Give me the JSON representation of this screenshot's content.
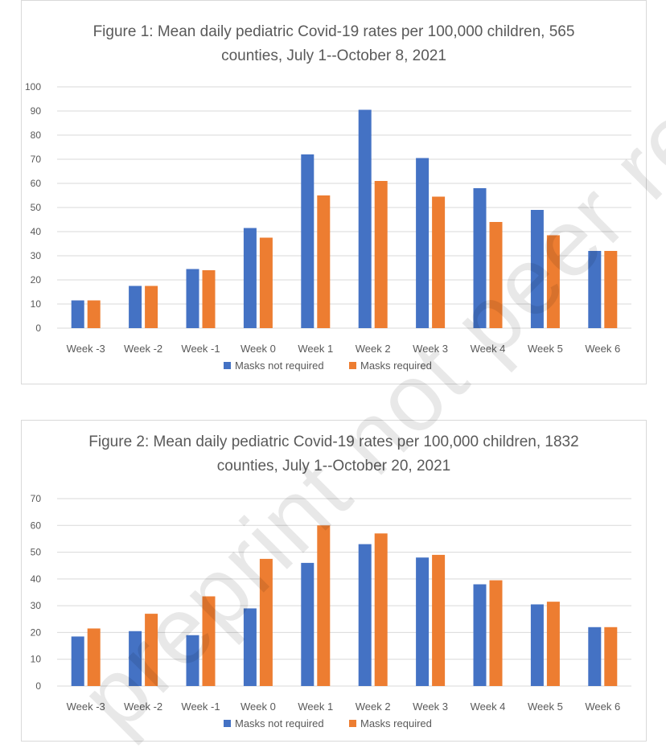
{
  "watermark": "preprint not peer reviewed",
  "colors": {
    "masks_not_required": "#4472C4",
    "masks_required": "#ED7D31",
    "grid": "#d9d9d9",
    "text": "#595959"
  },
  "chart_data": [
    {
      "type": "bar",
      "title": "Figure 1: Mean daily pediatric Covid-19 rates per 100,000 children, 565",
      "title_line2": "counties, July 1--October 8, 2021",
      "categories": [
        "Week -3",
        "Week -2",
        "Week -1",
        "Week 0",
        "Week 1",
        "Week 2",
        "Week 3",
        "Week 4",
        "Week 5",
        "Week 6"
      ],
      "series": [
        {
          "name": "Masks not required",
          "color": "#4472C4",
          "values": [
            11.5,
            17.5,
            24.5,
            41.5,
            72,
            90.5,
            70.5,
            58,
            49,
            32
          ]
        },
        {
          "name": "Masks required",
          "color": "#ED7D31",
          "values": [
            11.5,
            17.5,
            24,
            37.5,
            55,
            61,
            54.5,
            44,
            38.5,
            32
          ]
        }
      ],
      "ylim": [
        0,
        100
      ],
      "yticks": [
        "0",
        "10",
        "20",
        "30",
        "40",
        "50",
        "60",
        "70",
        "80",
        "90",
        "100"
      ],
      "xlabel": "",
      "ylabel": "",
      "grid": true,
      "legend": "bottom"
    },
    {
      "type": "bar",
      "title": "Figure 2: Mean daily pediatric Covid-19 rates per 100,000 children, 1832",
      "title_line2": "counties, July 1--October 20, 2021",
      "categories": [
        "Week -3",
        "Week -2",
        "Week -1",
        "Week 0",
        "Week 1",
        "Week 2",
        "Week 3",
        "Week 4",
        "Week 5",
        "Week 6"
      ],
      "series": [
        {
          "name": "Masks not required",
          "color": "#4472C4",
          "values": [
            18.5,
            20.5,
            19,
            29,
            46,
            53,
            48,
            38,
            30.5,
            22
          ]
        },
        {
          "name": "Masks required",
          "color": "#ED7D31",
          "values": [
            21.5,
            27,
            33.5,
            47.5,
            60,
            57,
            49,
            39.5,
            31.5,
            22
          ]
        }
      ],
      "ylim": [
        0,
        70
      ],
      "yticks": [
        "0",
        "10",
        "20",
        "30",
        "40",
        "50",
        "60",
        "70"
      ],
      "xlabel": "",
      "ylabel": "",
      "grid": true,
      "legend": "bottom"
    }
  ]
}
